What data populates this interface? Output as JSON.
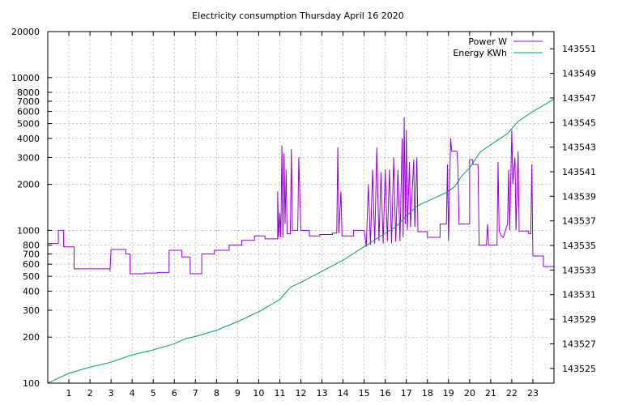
{
  "chart_data": {
    "type": "line",
    "title": "Electricity consumption Thursday April 16 2020",
    "x_range": [
      0,
      24
    ],
    "x_ticks": [
      1,
      2,
      3,
      4,
      5,
      6,
      7,
      8,
      9,
      10,
      11,
      12,
      13,
      14,
      15,
      16,
      17,
      18,
      19,
      20,
      21,
      22,
      23
    ],
    "y_left": {
      "scale": "log",
      "range": [
        100,
        20000
      ],
      "ticks": [
        100,
        200,
        300,
        400,
        500,
        600,
        700,
        800,
        1000,
        2000,
        3000,
        4000,
        5000,
        6000,
        7000,
        8000,
        10000,
        20000
      ]
    },
    "y_right": {
      "scale": "linear",
      "range": [
        143523.8,
        143552.4
      ],
      "ticks": [
        143525,
        143527,
        143529,
        143531,
        143533,
        143535,
        143537,
        143539,
        143541,
        143543,
        143545,
        143547,
        143549,
        143551
      ]
    },
    "grid": true,
    "legend_position": "top-right",
    "series": [
      {
        "name": "Power W",
        "axis": "left",
        "color": "#9400d3",
        "points": [
          [
            0,
            820
          ],
          [
            0.5,
            820
          ],
          [
            0.5,
            1000
          ],
          [
            0.75,
            1000
          ],
          [
            0.75,
            780
          ],
          [
            1.25,
            780
          ],
          [
            1.25,
            560
          ],
          [
            2.95,
            560
          ],
          [
            2.95,
            540
          ],
          [
            3.0,
            750
          ],
          [
            3.7,
            750
          ],
          [
            3.7,
            700
          ],
          [
            3.9,
            700
          ],
          [
            3.9,
            520
          ],
          [
            4.6,
            520
          ],
          [
            4.6,
            525
          ],
          [
            5.2,
            525
          ],
          [
            5.2,
            530
          ],
          [
            5.75,
            530
          ],
          [
            5.75,
            740
          ],
          [
            6.35,
            740
          ],
          [
            6.35,
            670
          ],
          [
            6.75,
            670
          ],
          [
            6.75,
            520
          ],
          [
            7.3,
            520
          ],
          [
            7.3,
            700
          ],
          [
            7.9,
            700
          ],
          [
            7.9,
            740
          ],
          [
            8.6,
            740
          ],
          [
            8.6,
            800
          ],
          [
            9.2,
            800
          ],
          [
            9.2,
            860
          ],
          [
            9.8,
            860
          ],
          [
            9.8,
            920
          ],
          [
            10.3,
            920
          ],
          [
            10.3,
            880
          ],
          [
            10.9,
            880
          ],
          [
            10.9,
            1800
          ],
          [
            10.95,
            900
          ],
          [
            11.0,
            1300
          ],
          [
            11.05,
            900
          ],
          [
            11.1,
            3600
          ],
          [
            11.15,
            900
          ],
          [
            11.2,
            3200
          ],
          [
            11.25,
            1100
          ],
          [
            11.3,
            2500
          ],
          [
            11.35,
            950
          ],
          [
            11.5,
            950
          ],
          [
            11.55,
            3400
          ],
          [
            11.6,
            1000
          ],
          [
            11.85,
            1000
          ],
          [
            11.9,
            3000
          ],
          [
            12.0,
            1000
          ],
          [
            12.4,
            1000
          ],
          [
            12.4,
            920
          ],
          [
            12.9,
            920
          ],
          [
            12.9,
            940
          ],
          [
            13.5,
            940
          ],
          [
            13.5,
            960
          ],
          [
            13.7,
            960
          ],
          [
            13.75,
            3500
          ],
          [
            13.8,
            960
          ],
          [
            13.9,
            1800
          ],
          [
            13.95,
            920
          ],
          [
            14.5,
            920
          ],
          [
            14.5,
            1000
          ],
          [
            15.0,
            1000
          ],
          [
            15.1,
            780
          ],
          [
            15.2,
            2000
          ],
          [
            15.3,
            800
          ],
          [
            15.4,
            2500
          ],
          [
            15.5,
            820
          ],
          [
            15.6,
            3500
          ],
          [
            15.7,
            850
          ],
          [
            15.8,
            2400
          ],
          [
            15.9,
            820
          ],
          [
            16.0,
            2500
          ],
          [
            16.1,
            850
          ],
          [
            16.2,
            2500
          ],
          [
            16.3,
            820
          ],
          [
            16.4,
            3000
          ],
          [
            16.5,
            840
          ],
          [
            16.6,
            2500
          ],
          [
            16.7,
            850
          ],
          [
            16.8,
            4000
          ],
          [
            16.85,
            900
          ],
          [
            16.9,
            5500
          ],
          [
            16.95,
            1100
          ],
          [
            17.0,
            4500
          ],
          [
            17.05,
            1000
          ],
          [
            17.15,
            2800
          ],
          [
            17.2,
            1050
          ],
          [
            17.35,
            2900
          ],
          [
            17.4,
            1050
          ],
          [
            17.5,
            3000
          ],
          [
            17.55,
            980
          ],
          [
            18.0,
            980
          ],
          [
            18.0,
            900
          ],
          [
            18.6,
            900
          ],
          [
            18.6,
            1100
          ],
          [
            18.9,
            1100
          ],
          [
            18.95,
            2700
          ],
          [
            19.0,
            850
          ],
          [
            19.1,
            4000
          ],
          [
            19.15,
            3300
          ],
          [
            19.4,
            3300
          ],
          [
            19.45,
            2500
          ],
          [
            19.5,
            1100
          ],
          [
            20.0,
            1100
          ],
          [
            20.0,
            2900
          ],
          [
            20.15,
            2900
          ],
          [
            20.15,
            2700
          ],
          [
            20.4,
            2700
          ],
          [
            20.45,
            800
          ],
          [
            20.8,
            800
          ],
          [
            20.85,
            1100
          ],
          [
            20.9,
            800
          ],
          [
            21.3,
            800
          ],
          [
            21.35,
            2800
          ],
          [
            21.4,
            1000
          ],
          [
            21.5,
            920
          ],
          [
            21.6,
            900
          ],
          [
            21.7,
            1000
          ],
          [
            21.8,
            1100
          ],
          [
            21.85,
            2500
          ],
          [
            21.9,
            1000
          ],
          [
            22.0,
            4500
          ],
          [
            22.05,
            2000
          ],
          [
            22.1,
            2500
          ],
          [
            22.15,
            3000
          ],
          [
            22.2,
            1000
          ],
          [
            22.3,
            3300
          ],
          [
            22.35,
            990
          ],
          [
            22.8,
            990
          ],
          [
            22.8,
            950
          ],
          [
            22.9,
            950
          ],
          [
            22.95,
            2700
          ],
          [
            23.0,
            680
          ],
          [
            23.5,
            680
          ],
          [
            23.5,
            580
          ],
          [
            24.0,
            580
          ]
        ]
      },
      {
        "name": "Energy KWh",
        "axis": "right",
        "color": "#009e73",
        "points": [
          [
            0,
            143523.8
          ],
          [
            0.5,
            143524.2
          ],
          [
            1.0,
            143524.6
          ],
          [
            2.0,
            143525.1
          ],
          [
            3.0,
            143525.5
          ],
          [
            4.0,
            143526.1
          ],
          [
            5.0,
            143526.5
          ],
          [
            6.0,
            143527.0
          ],
          [
            6.5,
            143527.4
          ],
          [
            7.0,
            143527.6
          ],
          [
            8.0,
            143528.1
          ],
          [
            9.0,
            143528.8
          ],
          [
            10.0,
            143529.6
          ],
          [
            10.6,
            143530.2
          ],
          [
            11.0,
            143530.6
          ],
          [
            11.2,
            143531.0
          ],
          [
            11.5,
            143531.6
          ],
          [
            12.0,
            143532.0
          ],
          [
            13.0,
            143532.9
          ],
          [
            14.0,
            143533.8
          ],
          [
            15.0,
            143534.9
          ],
          [
            16.0,
            143536.0
          ],
          [
            16.5,
            143536.5
          ],
          [
            17.0,
            143537.4
          ],
          [
            17.5,
            143538.2
          ],
          [
            18.0,
            143538.6
          ],
          [
            19.0,
            143539.4
          ],
          [
            19.3,
            143539.8
          ],
          [
            19.6,
            143540.6
          ],
          [
            20.0,
            143541.3
          ],
          [
            20.5,
            143542.6
          ],
          [
            21.0,
            143543.2
          ],
          [
            21.8,
            143544.1
          ],
          [
            22.3,
            143545.1
          ],
          [
            23.0,
            143545.9
          ],
          [
            24.0,
            143546.9
          ]
        ]
      }
    ]
  }
}
